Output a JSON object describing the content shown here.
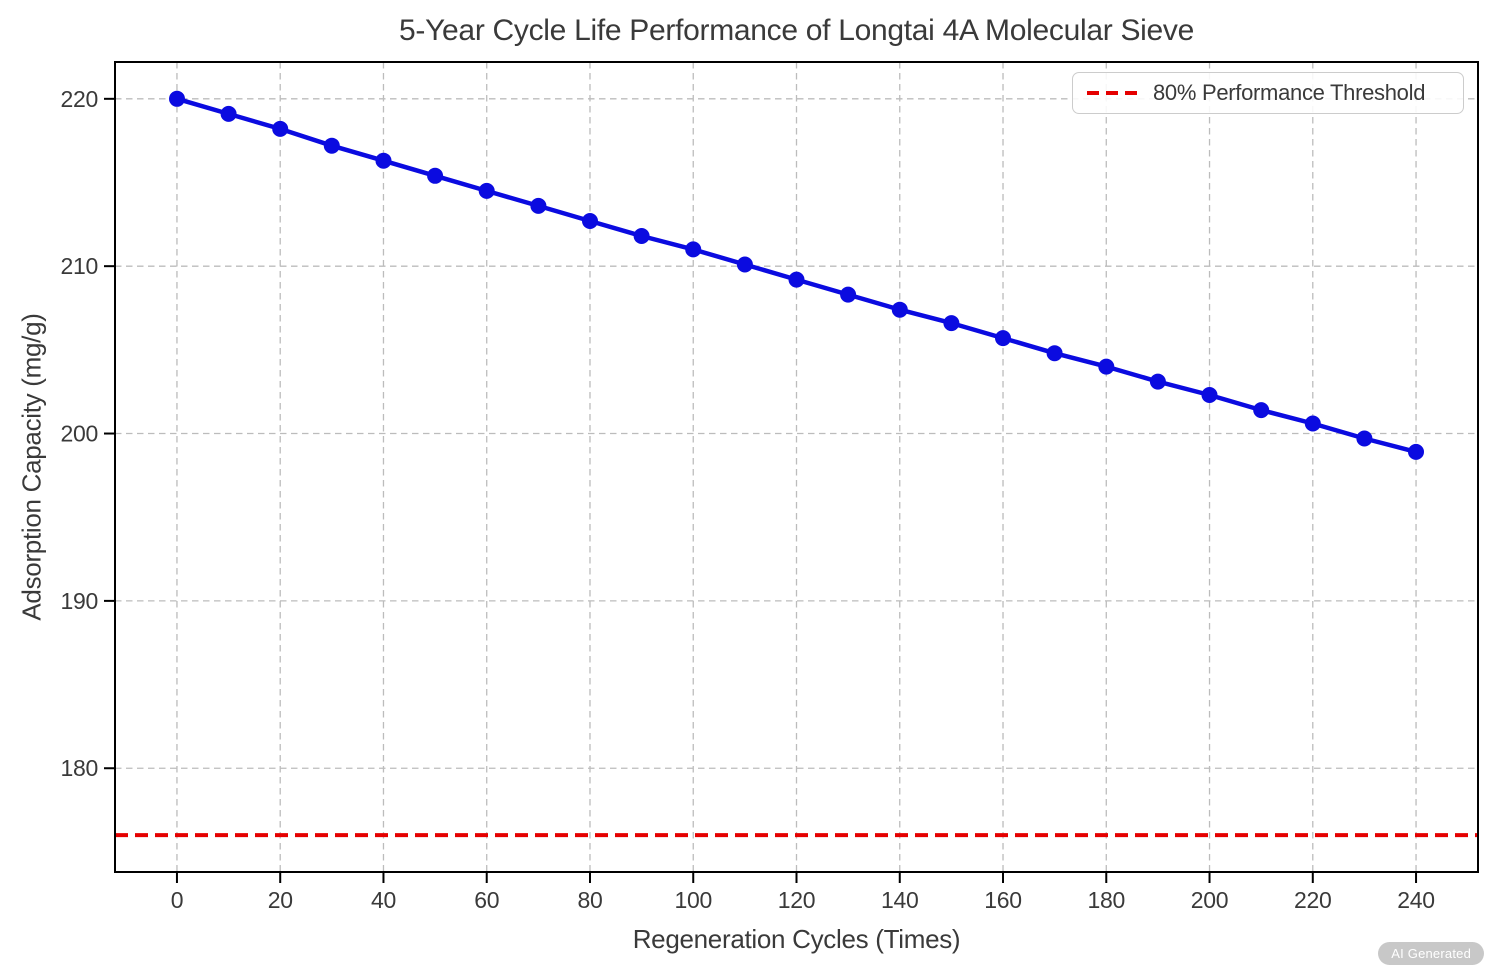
{
  "watermark": "AI Generated",
  "chart_data": {
    "type": "line",
    "title": "5-Year Cycle Life Performance of Longtai 4A Molecular Sieve",
    "xlabel": "Regeneration Cycles (Times)",
    "ylabel": "Adsorption Capacity (mg/g)",
    "x": [
      0,
      10,
      20,
      30,
      40,
      50,
      60,
      70,
      80,
      90,
      100,
      110,
      120,
      130,
      140,
      150,
      160,
      170,
      180,
      190,
      200,
      210,
      220,
      230,
      240
    ],
    "series": [
      {
        "name": "Adsorption Capacity",
        "color": "#0b0be0",
        "marker": "circle",
        "values": [
          220.0,
          219.1,
          218.2,
          217.2,
          216.3,
          215.4,
          214.5,
          213.6,
          212.7,
          211.8,
          211.0,
          210.1,
          209.2,
          208.3,
          207.4,
          206.6,
          205.7,
          204.8,
          204.0,
          203.1,
          202.3,
          201.4,
          200.6,
          199.7,
          198.9
        ]
      }
    ],
    "threshold": {
      "label": "80% Performance Threshold",
      "value": 176,
      "color": "#e50000",
      "style": "dashed"
    },
    "legend": [
      "80% Performance Threshold"
    ],
    "legend_position": "upper right",
    "xlim": [
      -12,
      252
    ],
    "ylim": [
      173.8,
      222.2
    ],
    "xticks": [
      0,
      20,
      40,
      60,
      80,
      100,
      120,
      140,
      160,
      180,
      200,
      220,
      240
    ],
    "yticks": [
      180,
      190,
      200,
      210,
      220
    ],
    "grid": true,
    "grid_color": "#bcbcbc",
    "axis_color": "#000000",
    "text_color": "#3a3a3a"
  }
}
